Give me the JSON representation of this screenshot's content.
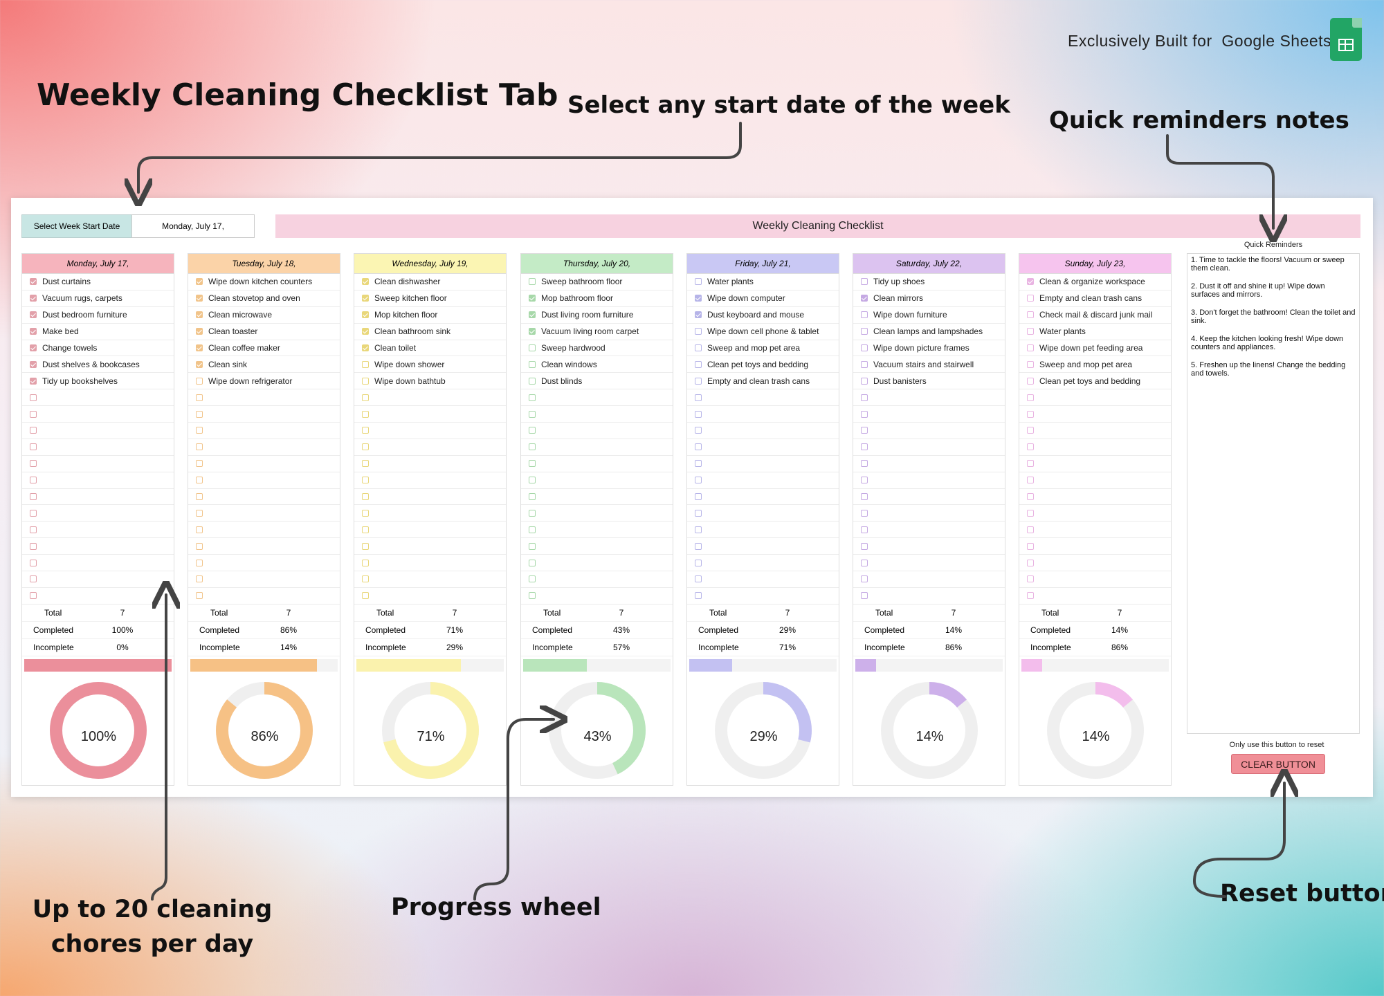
{
  "annotations": {
    "title": "Weekly Cleaning Checklist Tab",
    "start_date": "Select any start date of the week",
    "reminders": "Quick reminders notes",
    "chores": "Up to 20 cleaning chores per day",
    "progress": "Progress wheel",
    "reset": "Reset button"
  },
  "brand": {
    "prefix": "Exclusively Built for",
    "product": "Google Sheets"
  },
  "sheet": {
    "week_label": "Select Week Start Date",
    "week_value": "Monday, July 17,",
    "banner": "Weekly Cleaning Checklist",
    "labels": {
      "total": "Total",
      "completed": "Completed",
      "incomplete": "Incomplete"
    },
    "rows_per_day": 20,
    "days": [
      {
        "name": "Monday, July 17,",
        "head_color": "#f6b4bd",
        "accent": "#eb8f9b",
        "box": "#e2a0a9",
        "total": "7",
        "completed": "100%",
        "incomplete": "0%",
        "completed_fraction": 1.0,
        "tasks": [
          [
            "Dust curtains",
            true
          ],
          [
            "Vacuum rugs, carpets",
            true
          ],
          [
            "Dust bedroom furniture",
            true
          ],
          [
            "Make bed",
            true
          ],
          [
            "Change towels",
            true
          ],
          [
            "Dust shelves & bookcases",
            true
          ],
          [
            "Tidy up bookshelves",
            true
          ]
        ]
      },
      {
        "name": "Tuesday, July 18,",
        "head_color": "#fbd3a8",
        "accent": "#f6c185",
        "box": "#f1c48a",
        "total": "7",
        "completed": "86%",
        "incomplete": "14%",
        "completed_fraction": 0.86,
        "tasks": [
          [
            "Wipe down kitchen counters",
            true
          ],
          [
            "Clean stovetop and oven",
            true
          ],
          [
            "Clean microwave",
            true
          ],
          [
            "Clean toaster",
            true
          ],
          [
            "Clean coffee maker",
            true
          ],
          [
            "Clean sink",
            true
          ],
          [
            "Wipe down refrigerator",
            false
          ]
        ]
      },
      {
        "name": "Wednesday, July 19,",
        "head_color": "#fbf5b3",
        "accent": "#faf2ad",
        "box": "#e9d77a",
        "total": "7",
        "completed": "71%",
        "incomplete": "29%",
        "completed_fraction": 0.71,
        "tasks": [
          [
            "Clean dishwasher",
            true
          ],
          [
            "Sweep kitchen floor",
            true
          ],
          [
            "Mop kitchen floor",
            true
          ],
          [
            "Clean bathroom sink",
            true
          ],
          [
            "Clean toilet",
            true
          ],
          [
            "Wipe down shower",
            false
          ],
          [
            "Wipe down bathtub",
            false
          ]
        ]
      },
      {
        "name": "Thursday, July 20,",
        "head_color": "#c4ebc6",
        "accent": "#b9e5bb",
        "box": "#a7d8a9",
        "total": "7",
        "completed": "43%",
        "incomplete": "57%",
        "completed_fraction": 0.43,
        "tasks": [
          [
            "Sweep bathroom floor",
            false
          ],
          [
            "Mop bathroom floor",
            true
          ],
          [
            "Dust living room furniture",
            true
          ],
          [
            "Vacuum living room carpet",
            true
          ],
          [
            "Sweep hardwood",
            false
          ],
          [
            "Clean windows",
            false
          ],
          [
            "Dust blinds",
            false
          ]
        ]
      },
      {
        "name": "Friday, July 21,",
        "head_color": "#c9c8f4",
        "accent": "#c3c1f2",
        "box": "#b6b4e8",
        "total": "7",
        "completed": "29%",
        "incomplete": "71%",
        "completed_fraction": 0.29,
        "tasks": [
          [
            "Water plants",
            false
          ],
          [
            "Wipe down computer",
            true
          ],
          [
            "Dust keyboard and mouse",
            true
          ],
          [
            "Wipe down cell phone & tablet",
            false
          ],
          [
            "Sweep and mop pet area",
            false
          ],
          [
            "Clean pet toys and bedding",
            false
          ],
          [
            "Empty and clean trash cans",
            false
          ]
        ]
      },
      {
        "name": "Saturday, July 22,",
        "head_color": "#dcc3f0",
        "accent": "#cdb0ea",
        "box": "#c5a9e3",
        "total": "7",
        "completed": "14%",
        "incomplete": "86%",
        "completed_fraction": 0.14,
        "tasks": [
          [
            "Tidy up shoes",
            false
          ],
          [
            "Clean mirrors",
            true
          ],
          [
            "Wipe down furniture",
            false
          ],
          [
            "Clean lamps and lampshades",
            false
          ],
          [
            "Wipe down picture frames",
            false
          ],
          [
            "Vacuum stairs and stairwell",
            false
          ],
          [
            "Dust banisters",
            false
          ]
        ]
      },
      {
        "name": "Sunday, July 23,",
        "head_color": "#f6c4ee",
        "accent": "#f3bdec",
        "box": "#e9b4e2",
        "total": "7",
        "completed": "14%",
        "incomplete": "86%",
        "completed_fraction": 0.14,
        "tasks": [
          [
            "Clean & organize workspace",
            true
          ],
          [
            "Empty and clean trash cans",
            false
          ],
          [
            "Check mail & discard junk mail",
            false
          ],
          [
            "Water plants",
            false
          ],
          [
            "Wipe down pet feeding area",
            false
          ],
          [
            "Sweep and mop pet area",
            false
          ],
          [
            "Clean pet toys and bedding",
            false
          ]
        ]
      }
    ],
    "reminders_title": "Quick Reminders",
    "reminders": [
      "1. Time to tackle the floors! Vacuum or sweep them clean.",
      "2. Dust it off and shine it up! Wipe down surfaces and mirrors.",
      "3. Don't forget the bathroom! Clean the toilet and sink.",
      "4. Keep the kitchen looking fresh! Wipe down counters and appliances.",
      "5. Freshen up the linens! Change the bedding and towels."
    ],
    "reset_note": "Only use this button to reset",
    "clear_button": "CLEAR BUTTON"
  }
}
